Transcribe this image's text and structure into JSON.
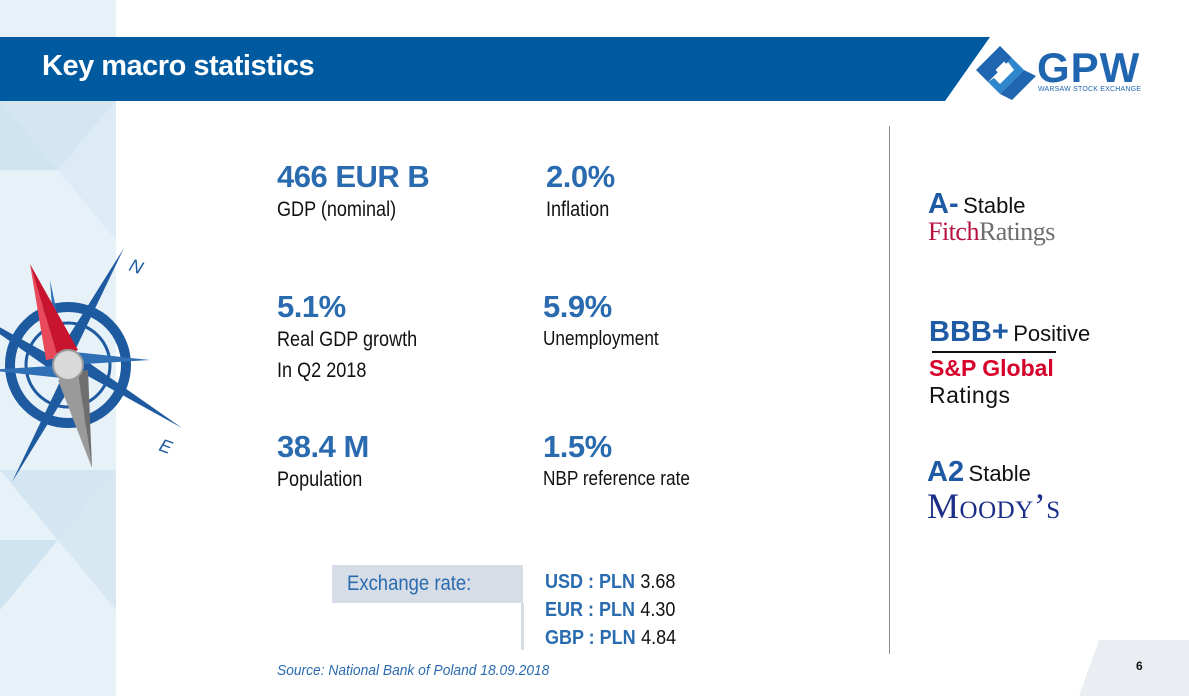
{
  "title": "Key macro statistics",
  "logo": {
    "name": "GPW",
    "subtitle": "WARSAW STOCK EXCHANGE"
  },
  "stats": [
    {
      "value": "466 EUR B",
      "label": "GDP (nominal)"
    },
    {
      "value": "2.0%",
      "label": "Inflation"
    },
    {
      "value": "5.1%",
      "label": "Real GDP growth",
      "label2": "In Q2 2018"
    },
    {
      "value": "5.9%",
      "label": "Unemployment"
    },
    {
      "value": "38.4 M",
      "label": "Population"
    },
    {
      "value": "1.5%",
      "label": "NBP reference rate"
    }
  ],
  "ratings": {
    "fitch": {
      "grade": "A-",
      "outlook": "Stable",
      "agency_part1": "Fitch",
      "agency_part2": "Ratings"
    },
    "sp": {
      "grade": "BBB+",
      "outlook": "Positive",
      "agency_line1": "S&P Global",
      "agency_line2": "Ratings"
    },
    "moodys": {
      "grade": "A2",
      "outlook": "Stable",
      "agency": "Moody’s"
    }
  },
  "exchange": {
    "label": "Exchange rate:",
    "rows": [
      {
        "pair": "USD : PLN",
        "rate": "3.68"
      },
      {
        "pair": "EUR : PLN",
        "rate": "4.30"
      },
      {
        "pair": "GBP : PLN",
        "rate": "4.84"
      }
    ]
  },
  "compass": {
    "n": "N",
    "e": "E"
  },
  "source": "Source: National Bank of Poland 18.09.2018",
  "page_number": "6",
  "colors": {
    "brand_blue": "#005aa0",
    "accent_text": "#2a6bb0",
    "panel": "#e6f1f8"
  }
}
